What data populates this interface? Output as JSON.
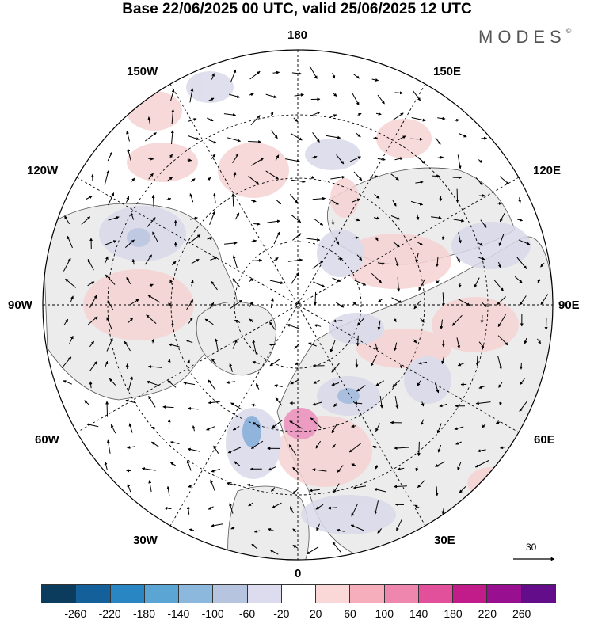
{
  "title": "Base 22/06/2025 00 UTC, valid 25/06/2025 12 UTC",
  "brand": "MODES",
  "brand_mark": "©",
  "longitude_labels": {
    "top": "180",
    "bottom": "0",
    "left": "90W",
    "right": "90E",
    "upper_left_1": "150W",
    "upper_left_2": "120W",
    "lower_left_1": "60W",
    "lower_left_2": "30W",
    "upper_right_1": "150E",
    "upper_right_2": "120E",
    "lower_right_1": "60E",
    "lower_right_2": "30E"
  },
  "reference_vector": {
    "value": "30",
    "icon": "arrow-right-icon"
  },
  "colorbar": {
    "colors": [
      "#0b3c5d",
      "#14609a",
      "#2a86c2",
      "#5aa5d4",
      "#8bb8dc",
      "#b6c4e0",
      "#dcdcee",
      "#ffffff",
      "#fad8d8",
      "#f6aebd",
      "#ef86ad",
      "#e2509c",
      "#c11c8a",
      "#98108f",
      "#640d8a"
    ],
    "ticks": [
      "-260",
      "-220",
      "-180",
      "-140",
      "-100",
      "-60",
      "-20",
      "20",
      "60",
      "100",
      "140",
      "180",
      "220",
      "260"
    ]
  },
  "anomaly_colors": {
    "land": "#ececec",
    "positive": "#f6d3d3",
    "negative": "#d9d9ea",
    "strong_negative": "#7ea8d6",
    "strong_positive": "#ec8fbd"
  }
}
